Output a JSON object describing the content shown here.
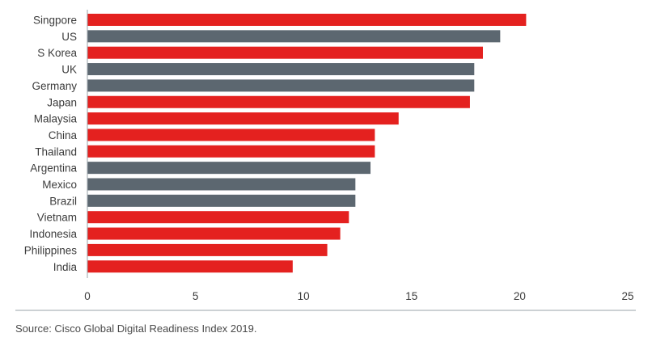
{
  "chart_data": {
    "type": "bar",
    "orientation": "horizontal",
    "title": "",
    "xlabel": "",
    "ylabel": "",
    "xlim": [
      0,
      25
    ],
    "x_ticks": [
      0,
      5,
      10,
      15,
      20,
      25
    ],
    "grid": false,
    "categories": [
      "Singpore",
      "US",
      "S Korea",
      "UK",
      "Germany",
      "Japan",
      "Malaysia",
      "China",
      "Thailand",
      "Argentina",
      "Mexico",
      "Brazil",
      "Vietnam",
      "Indonesia",
      "Philippines",
      "India"
    ],
    "values": [
      20.3,
      19.1,
      18.3,
      17.9,
      17.9,
      17.7,
      14.4,
      13.3,
      13.3,
      13.1,
      12.4,
      12.4,
      12.1,
      11.7,
      11.1,
      9.5
    ],
    "colors": [
      "#e4211f",
      "#5c6770",
      "#e4211f",
      "#5c6770",
      "#5c6770",
      "#e4211f",
      "#e4211f",
      "#e4211f",
      "#e4211f",
      "#5c6770",
      "#5c6770",
      "#5c6770",
      "#e4211f",
      "#e4211f",
      "#e4211f",
      "#e4211f"
    ],
    "source": "Source: Cisco Global Digital Readiness Index 2019."
  },
  "style": {
    "red": "#e4211f",
    "gray": "#5c6770",
    "axis_color": "#9aa3aa",
    "text_color": "#3c3c3c"
  }
}
